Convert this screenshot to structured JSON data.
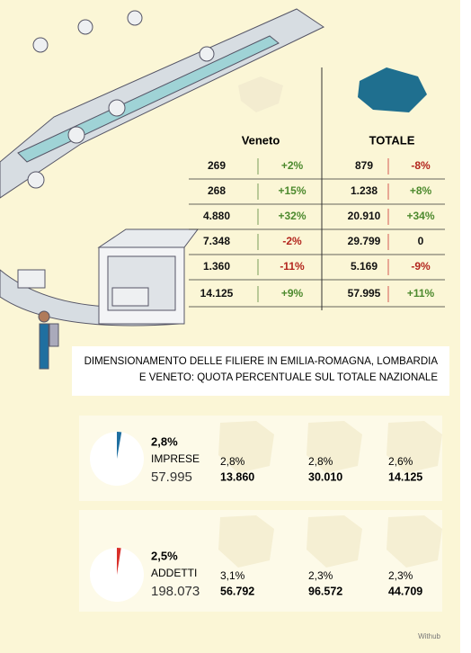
{
  "table": {
    "headers": [
      "Veneto",
      "TOTALE"
    ],
    "rows": [
      [
        "269",
        "+2%",
        "879",
        "-8%"
      ],
      [
        "268",
        "+15%",
        "1.238",
        "+8%"
      ],
      [
        "4.880",
        "+32%",
        "20.910",
        "+34%"
      ],
      [
        "7.348",
        "-2%",
        "29.799",
        "0"
      ],
      [
        "1.360",
        "-11%",
        "5.169",
        "-9%"
      ],
      [
        "14.125",
        "+9%",
        "57.995",
        "+11%"
      ]
    ]
  },
  "caption": [
    "DIMENSIONAMENTO DELLE FILIERE IN EMILIA-ROMAGNA, LOMBARDIA",
    "E VENETO: QUOTA PERCENTUALE SUL TOTALE NAZIONALE"
  ],
  "panels": [
    {
      "share": 2.8,
      "share_label": "2,8%",
      "label": "IMPRESE",
      "total": "57.995",
      "color": "#1f6fa0",
      "regions": [
        {
          "share": "2,8%",
          "count": "13.860"
        },
        {
          "share": "2,8%",
          "count": "30.010"
        },
        {
          "share": "2,6%",
          "count": "14.125"
        }
      ]
    },
    {
      "share": 2.5,
      "share_label": "2,5%",
      "label": "ADDETTI",
      "total": "198.073",
      "color": "#d9302a",
      "regions": [
        {
          "share": "3,1%",
          "count": "56.792"
        },
        {
          "share": "2,3%",
          "count": "96.572"
        },
        {
          "share": "2,3%",
          "count": "44.709"
        }
      ]
    }
  ],
  "credit": "Withub"
}
